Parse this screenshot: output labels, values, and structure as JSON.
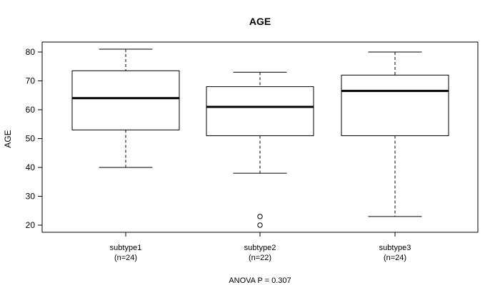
{
  "chart_data": {
    "type": "box",
    "title": "AGE",
    "ylabel": "AGE",
    "xlabel": "",
    "ylim": [
      17.5,
      83
    ],
    "yticks": [
      20,
      30,
      40,
      50,
      60,
      70,
      80
    ],
    "categories": [
      {
        "name": "subtype1",
        "n_label": "(n=24)"
      },
      {
        "name": "subtype2",
        "n_label": "(n=22)"
      },
      {
        "name": "subtype3",
        "n_label": "(n=24)"
      }
    ],
    "boxes": [
      {
        "whisker_low": 40,
        "q1": 53,
        "median": 64,
        "q3": 73.5,
        "whisker_high": 81,
        "outliers": []
      },
      {
        "whisker_low": 38,
        "q1": 51,
        "median": 61,
        "q3": 68,
        "whisker_high": 73,
        "outliers": [
          20,
          23
        ]
      },
      {
        "whisker_low": 23,
        "q1": 51,
        "median": 66.5,
        "q3": 72,
        "whisker_high": 80,
        "outliers": []
      }
    ],
    "footnote": "ANOVA P = 0.307",
    "grid": false,
    "legend": "none"
  }
}
